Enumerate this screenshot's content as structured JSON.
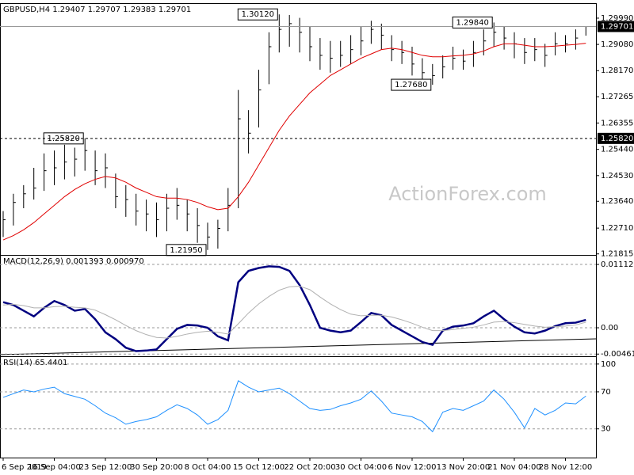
{
  "chart_data": [
    {
      "type": "ohlc",
      "title": "GBPUSD,H4  1.29407 1.29707 1.29383 1.29701",
      "watermark": "ActionForex.com",
      "color": "#000000",
      "high": [
        1.233,
        1.239,
        1.242,
        1.248,
        1.253,
        1.254,
        1.256,
        1.255,
        1.2582,
        1.254,
        1.253,
        1.246,
        1.242,
        1.239,
        1.237,
        1.236,
        1.239,
        1.241,
        1.237,
        1.234,
        1.229,
        1.23,
        1.241,
        1.275,
        1.268,
        1.282,
        1.295,
        1.3012,
        1.301,
        1.3,
        1.297,
        1.293,
        1.292,
        1.292,
        1.294,
        1.297,
        1.299,
        1.298,
        1.294,
        1.292,
        1.29,
        1.286,
        1.284,
        1.287,
        1.29,
        1.289,
        1.292,
        1.296,
        1.2984,
        1.297,
        1.295,
        1.293,
        1.293,
        1.291,
        1.295,
        1.294,
        1.296,
        1.29707
      ],
      "low": [
        1.224,
        1.228,
        1.234,
        1.237,
        1.24,
        1.242,
        1.244,
        1.245,
        1.247,
        1.242,
        1.241,
        1.234,
        1.231,
        1.228,
        1.226,
        1.224,
        1.226,
        1.23,
        1.226,
        1.222,
        1.2195,
        1.22,
        1.226,
        1.234,
        1.253,
        1.262,
        1.277,
        1.288,
        1.29,
        1.288,
        1.285,
        1.282,
        1.281,
        1.283,
        1.284,
        1.287,
        1.291,
        1.289,
        1.285,
        1.284,
        1.28,
        1.278,
        1.2768,
        1.279,
        1.282,
        1.282,
        1.283,
        1.287,
        1.29,
        1.289,
        1.286,
        1.284,
        1.285,
        1.283,
        1.287,
        1.288,
        1.289,
        1.29383
      ],
      "close": [
        1.23,
        1.236,
        1.239,
        1.241,
        1.247,
        1.248,
        1.25,
        1.251,
        1.254,
        1.247,
        1.248,
        1.238,
        1.237,
        1.233,
        1.232,
        1.23,
        1.234,
        1.235,
        1.232,
        1.228,
        1.224,
        1.227,
        1.235,
        1.265,
        1.26,
        1.275,
        1.29,
        1.296,
        1.298,
        1.295,
        1.29,
        1.287,
        1.286,
        1.287,
        1.289,
        1.292,
        1.296,
        1.294,
        1.289,
        1.288,
        1.284,
        1.281,
        1.28,
        1.283,
        1.286,
        1.285,
        1.288,
        1.292,
        1.295,
        1.293,
        1.291,
        1.288,
        1.289,
        1.287,
        1.291,
        1.291,
        1.293,
        1.29701
      ],
      "series": [
        {
          "color": "#e00000",
          "values": [
            1.223,
            1.2245,
            1.2265,
            1.229,
            1.232,
            1.235,
            1.238,
            1.2405,
            1.2425,
            1.244,
            1.245,
            1.2445,
            1.243,
            1.241,
            1.2395,
            1.238,
            1.2375,
            1.2375,
            1.237,
            1.236,
            1.2345,
            1.2335,
            1.234,
            1.238,
            1.243,
            1.249,
            1.255,
            1.261,
            1.266,
            1.27,
            1.274,
            1.277,
            1.28,
            1.282,
            1.284,
            1.286,
            1.2875,
            1.289,
            1.2895,
            1.289,
            1.288,
            1.287,
            1.2865,
            1.2865,
            1.2868,
            1.287,
            1.2875,
            1.2885,
            1.29,
            1.291,
            1.291,
            1.2905,
            1.29,
            1.29,
            1.2902,
            1.2905,
            1.2908,
            1.2912
          ]
        }
      ],
      "annotations": [
        {
          "value": 1.3012,
          "label": "1.30120"
        },
        {
          "value": 1.2582,
          "label": "1.25820",
          "level_line": true
        },
        {
          "value": 1.2195,
          "label": "1.21950"
        },
        {
          "value": 1.2984,
          "label": "1.29840"
        },
        {
          "value": 1.2768,
          "label": "1.27680"
        }
      ],
      "ylim": [
        1.2178,
        1.304
      ],
      "yticks": [
        {
          "value": 1.2999,
          "label": "1.29990"
        },
        {
          "value": 1.2908,
          "label": "1.29080"
        },
        {
          "value": 1.2817,
          "label": "1.28170"
        },
        1.27265,
        1.26355,
        {
          "value": 1.2544,
          "label": "1.25440"
        },
        {
          "value": 1.2453,
          "label": "1.24530"
        },
        {
          "value": 1.2364,
          "label": "1.23640"
        },
        {
          "value": 1.2271,
          "label": "1.22710"
        },
        1.21815
      ]
    },
    {
      "type": "line",
      "title": "MACD(12,26,9) 0.001393 0.000970",
      "series": [
        {
          "color": "#000080",
          "values": [
            0.0045,
            0.004,
            0.003,
            0.002,
            0.0035,
            0.0047,
            0.004,
            0.003,
            0.0033,
            0.0015,
            -0.0008,
            -0.002,
            -0.0035,
            -0.0041,
            -0.004,
            -0.0038,
            -0.002,
            -0.0002,
            0.0005,
            0.0004,
            0.0,
            -0.0015,
            -0.0022,
            0.008,
            0.01,
            0.0105,
            0.0108,
            0.0107,
            0.01,
            0.0075,
            0.004,
            0.0,
            -0.0005,
            -0.0008,
            -0.0005,
            0.001,
            0.0026,
            0.0022,
            0.0005,
            -0.0005,
            -0.0015,
            -0.0025,
            -0.003,
            -0.0005,
            0.0002,
            0.0004,
            0.0008,
            0.002,
            0.003,
            0.0015,
            0.0002,
            -0.0008,
            -0.001,
            -0.0005,
            0.0003,
            0.0008,
            0.0009,
            0.001393
          ]
        },
        {
          "color": "#b0b0b0",
          "values": [
            0.004,
            0.0041,
            0.0039,
            0.0035,
            0.0035,
            0.0037,
            0.0038,
            0.0036,
            0.0035,
            0.0031,
            0.0023,
            0.0014,
            0.0004,
            -0.0005,
            -0.0012,
            -0.0017,
            -0.0018,
            -0.0015,
            -0.0011,
            -0.0008,
            -0.0006,
            -0.0008,
            -0.0011,
            0.0007,
            0.0026,
            0.0042,
            0.0055,
            0.0066,
            0.0072,
            0.0073,
            0.0067,
            0.0054,
            0.0042,
            0.0032,
            0.0024,
            0.0021,
            0.0022,
            0.0022,
            0.0019,
            0.0014,
            0.0008,
            0.0001,
            -0.0005,
            -0.0005,
            -0.0003,
            -0.0001,
            0.0001,
            0.0005,
            0.001,
            0.0011,
            0.0009,
            0.0006,
            0.0003,
            0.0001,
            0.0002,
            0.0003,
            0.0005,
            0.00097
          ]
        }
      ],
      "ylim": [
        -0.005,
        0.01224
      ],
      "yticks": [
        0.011123,
        {
          "value": 0,
          "label": "0.00"
        },
        -0.004617
      ]
    },
    {
      "type": "line",
      "title": "RSI(14) 65.4401",
      "categories": [
        "6 Sep 2019",
        null,
        null,
        null,
        null,
        "16 Sep 04:00",
        null,
        null,
        null,
        null,
        "23 Sep 12:00",
        null,
        null,
        null,
        null,
        "30 Sep 20:00",
        null,
        null,
        null,
        null,
        "8 Oct 04:00",
        null,
        null,
        null,
        null,
        "15 Oct 12:00",
        null,
        null,
        null,
        null,
        "22 Oct 20:00",
        null,
        null,
        null,
        null,
        "30 Oct 04:00",
        null,
        null,
        null,
        null,
        "6 Nov 12:00",
        null,
        null,
        null,
        null,
        "13 Nov 20:00",
        null,
        null,
        null,
        null,
        "21 Nov 04:00",
        null,
        null,
        null,
        null,
        "28 Nov 12:00",
        null,
        null
      ],
      "series": [
        {
          "color": "#1e90ff",
          "values": [
            64,
            68,
            72,
            70,
            73,
            75,
            68,
            65,
            62,
            55,
            47,
            42,
            35,
            38,
            40,
            43,
            50,
            56,
            52,
            45,
            35,
            40,
            50,
            82,
            75,
            70,
            72,
            74,
            68,
            60,
            52,
            50,
            51,
            55,
            58,
            62,
            71,
            60,
            47,
            45,
            43,
            38,
            27,
            48,
            52,
            50,
            55,
            60,
            72,
            62,
            48,
            31,
            52,
            45,
            50,
            58,
            57,
            65.4401
          ]
        }
      ],
      "ylim": [
        -1,
        105
      ],
      "yticks": [
        100,
        70,
        30
      ]
    }
  ]
}
